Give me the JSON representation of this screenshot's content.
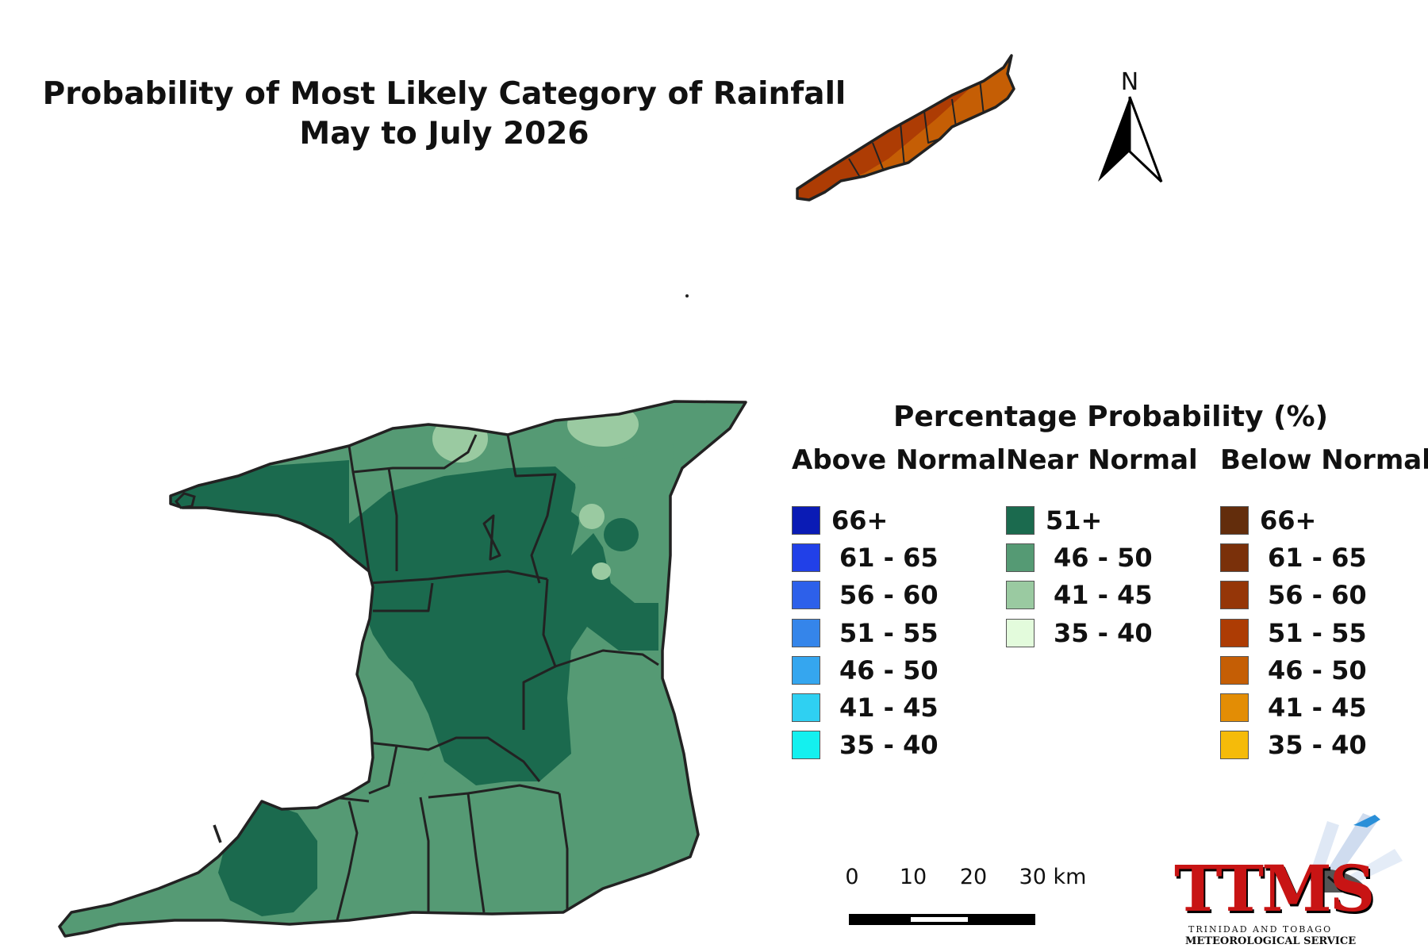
{
  "title": {
    "line1": "Probability of Most Likely Category of Rainfall",
    "line2": "May to July 2026"
  },
  "north_label": "N",
  "legend": {
    "title": "Percentage Probability (%)",
    "columns": [
      {
        "heading": "Above Normal",
        "items": [
          {
            "label": "66+",
            "color": "#0a1bb5"
          },
          {
            "label": "61 - 65",
            "color": "#2140e8"
          },
          {
            "label": "56 - 60",
            "color": "#2d60ea"
          },
          {
            "label": "51 - 55",
            "color": "#3585ea"
          },
          {
            "label": "46 - 50",
            "color": "#35a6ef"
          },
          {
            "label": "41 - 45",
            "color": "#2fd0f2"
          },
          {
            "label": "35 - 40",
            "color": "#14f0ef"
          }
        ]
      },
      {
        "heading": "Near Normal",
        "items": [
          {
            "label": "51+",
            "color": "#1b6a4e"
          },
          {
            "label": "46 - 50",
            "color": "#559a74"
          },
          {
            "label": "41 - 45",
            "color": "#9acaa1"
          },
          {
            "label": "35 - 40",
            "color": "#e3fbdc"
          }
        ]
      },
      {
        "heading": "Below Normal",
        "items": [
          {
            "label": "66+",
            "color": "#632d0c"
          },
          {
            "label": "61 - 65",
            "color": "#7a300a"
          },
          {
            "label": "56 - 60",
            "color": "#953608"
          },
          {
            "label": "51 - 55",
            "color": "#ad3c04"
          },
          {
            "label": "46 - 50",
            "color": "#c55e05"
          },
          {
            "label": "41 - 45",
            "color": "#e38d05"
          },
          {
            "label": "35 - 40",
            "color": "#f5bb0a"
          }
        ]
      }
    ]
  },
  "scale": {
    "ticks": [
      "0",
      "10",
      "20",
      "30 km"
    ]
  },
  "logo": {
    "text": "TTMS",
    "sub1": "TRINIDAD AND TOBAGO",
    "sub2": "METEOROLOGICAL SERVICE"
  },
  "map_regions": {
    "trinidad_base": "Near Normal 46 - 50",
    "trinidad_core": "Near Normal 51+",
    "trinidad_patches": "Near Normal 41 - 45",
    "tobago_base": "Below Normal 46 - 50",
    "tobago_west": "Below Normal 51 - 55"
  }
}
